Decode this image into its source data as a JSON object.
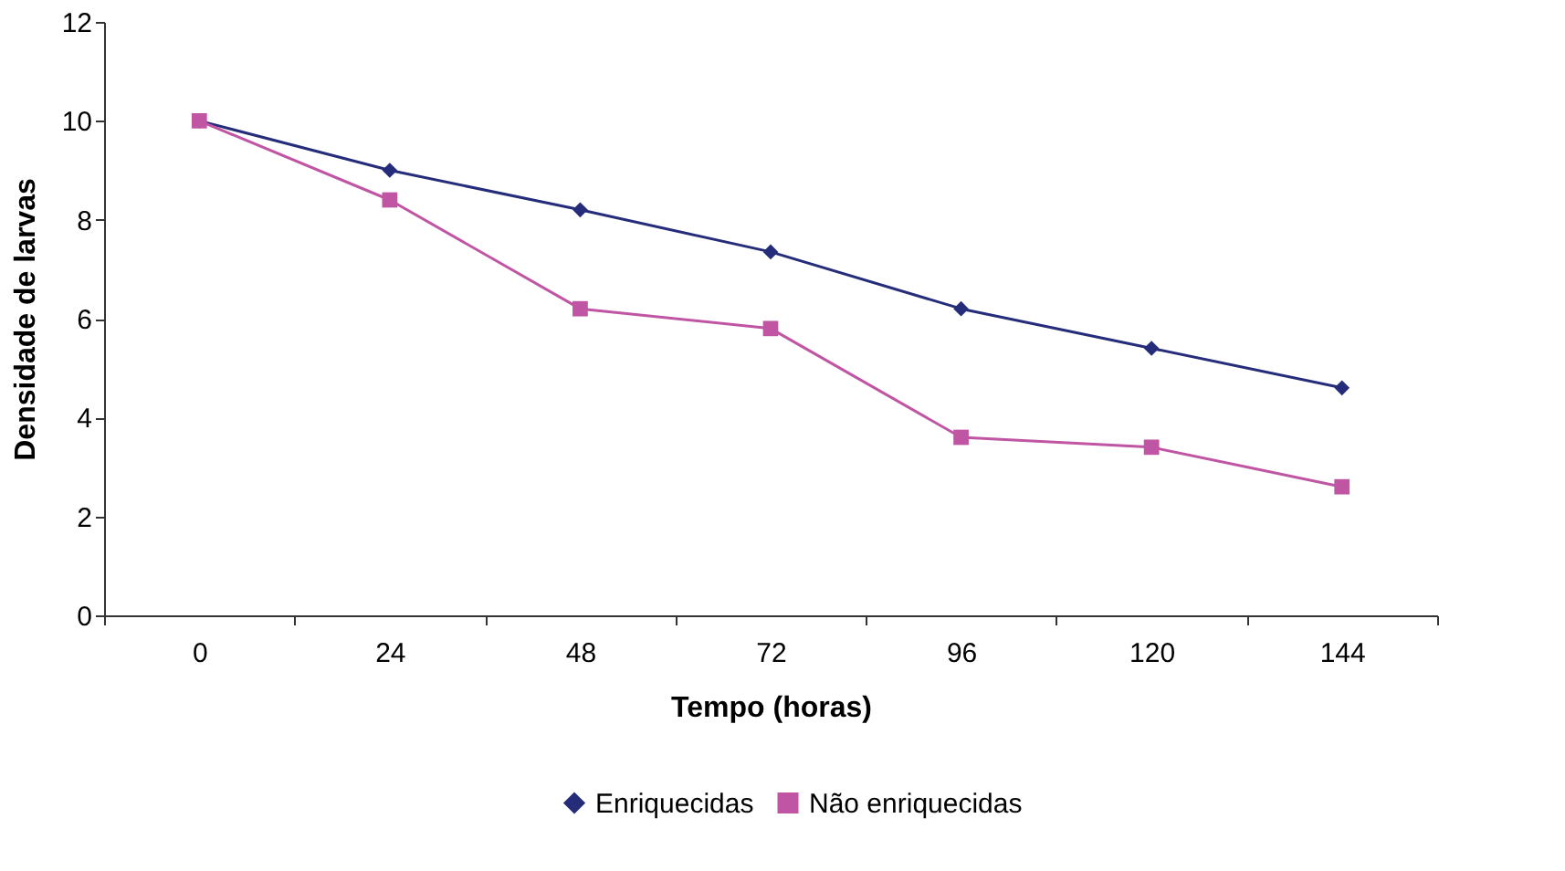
{
  "chart_data": {
    "type": "line",
    "xlabel": "Tempo (horas)",
    "ylabel": "Densidade de larvas",
    "categories": [
      "0",
      "24",
      "48",
      "72",
      "96",
      "120",
      "144"
    ],
    "series": [
      {
        "name": "Enriquecidas",
        "color": "#252d7a",
        "marker": "diamond",
        "values": [
          10,
          9.0,
          8.2,
          7.35,
          6.2,
          5.4,
          4.6
        ]
      },
      {
        "name": "Não enriquecidas",
        "color": "#c055a3",
        "marker": "square",
        "values": [
          10,
          8.4,
          6.2,
          5.8,
          3.6,
          3.4,
          2.6
        ]
      }
    ],
    "ylim": [
      0,
      12
    ],
    "yticks": [
      0,
      2,
      4,
      6,
      8,
      10,
      12
    ],
    "grid": false,
    "legend": "bottom",
    "line_style": "solid"
  }
}
